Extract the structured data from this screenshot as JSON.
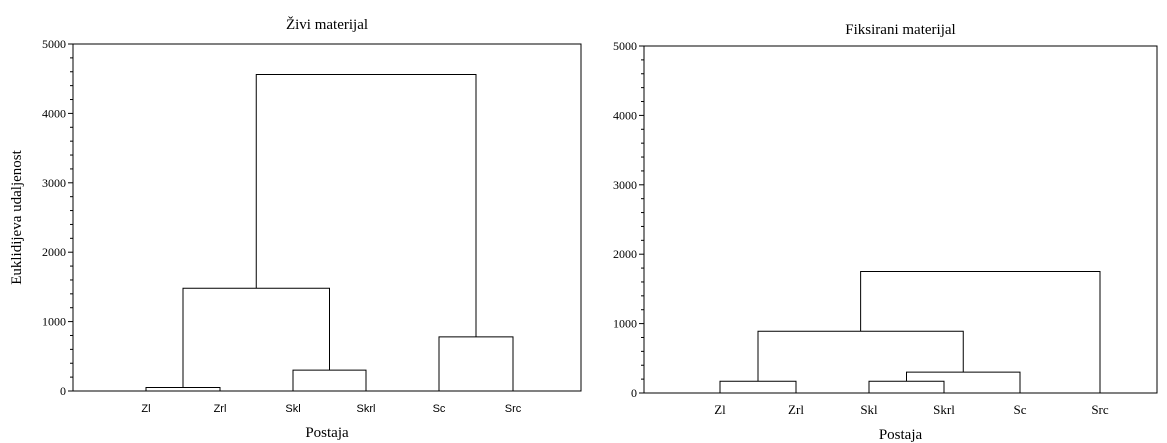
{
  "chart_data": [
    {
      "type": "dendrogram",
      "title": "Živi materijal",
      "xlabel": "Postaja",
      "ylabel": "Euklidijeva udaljenost",
      "ylim": [
        0,
        5000
      ],
      "yticks": [
        0,
        1000,
        2000,
        3000,
        4000,
        5000
      ],
      "categories": [
        "Zl",
        "Zrl",
        "Skl",
        "Skrl",
        "Sc",
        "Src"
      ],
      "merges": [
        {
          "left": "Zl",
          "right": "Zrl",
          "height": 50
        },
        {
          "left": "Skl",
          "right": "Skrl",
          "height": 300
        },
        {
          "left": "Sc",
          "right": "Src",
          "height": 780
        },
        {
          "left": "Zl+Zrl",
          "right": "Skl+Skrl",
          "height": 1480
        },
        {
          "left": "Zl+Zrl+Skl+Skrl",
          "right": "Sc+Src",
          "height": 4560
        }
      ]
    },
    {
      "type": "dendrogram",
      "title": "Fiksirani materijal",
      "xlabel": "Postaja",
      "ylabel": "",
      "ylim": [
        0,
        5000
      ],
      "yticks": [
        0,
        1000,
        2000,
        3000,
        4000,
        5000
      ],
      "categories": [
        "Zl",
        "Zrl",
        "Skl",
        "Skrl",
        "Sc",
        "Src"
      ],
      "merges": [
        {
          "left": "Zl",
          "right": "Zrl",
          "height": 170
        },
        {
          "left": "Skl",
          "right": "Skrl",
          "height": 170
        },
        {
          "left": "Skl+Skrl",
          "right": "Sc",
          "height": 300
        },
        {
          "left": "Zl+Zrl",
          "right": "Skl+Skrl+Sc",
          "height": 890
        },
        {
          "left": "Zl+Zrl+Skl+Skrl+Sc",
          "right": "Src",
          "height": 1750
        }
      ]
    }
  ]
}
